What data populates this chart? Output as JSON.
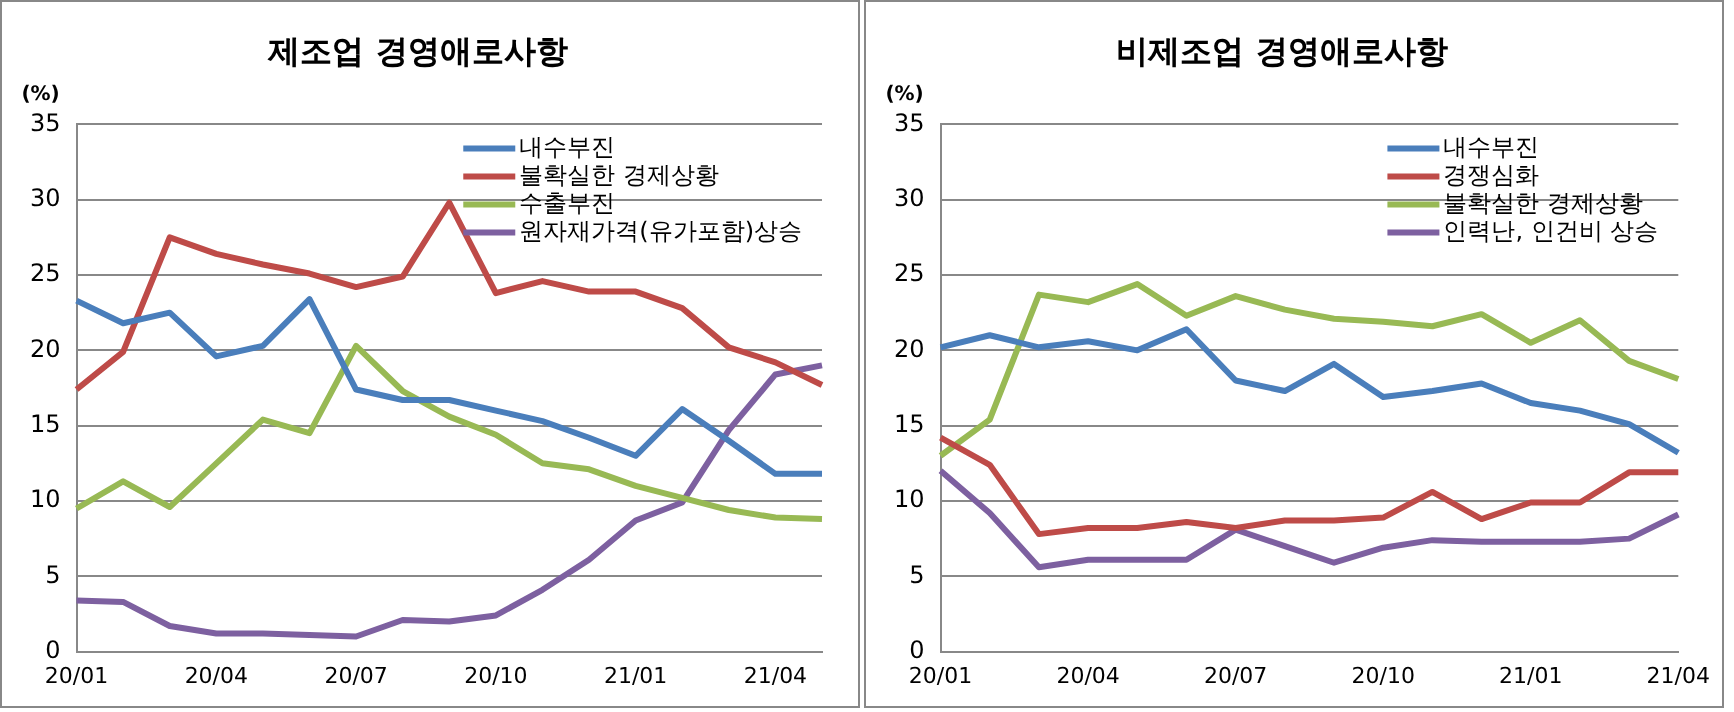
{
  "chart_data": [
    {
      "type": "line",
      "title": "제조업 경영애로사항",
      "ylabel": "(%)",
      "categories": [
        "20/01",
        null,
        null,
        "20/04",
        null,
        null,
        "20/07",
        null,
        null,
        "20/10",
        null,
        null,
        "21/01",
        null,
        null,
        "21/04",
        null
      ],
      "ylim": [
        0,
        35
      ],
      "yticks": [
        0,
        5,
        10,
        15,
        20,
        25,
        30,
        35
      ],
      "grid": "y",
      "legend": "top right",
      "series": [
        {
          "name": "내수부진",
          "color": "#4a7ebb",
          "values": [
            23.3,
            21.8,
            22.5,
            19.6,
            20.3,
            23.4,
            17.4,
            16.7,
            16.7,
            16.0,
            15.3,
            14.2,
            13.0,
            16.1,
            14.0,
            11.8,
            11.8
          ]
        },
        {
          "name": "불확실한 경제상황",
          "color": "#be4b48",
          "values": [
            17.4,
            19.9,
            27.5,
            26.4,
            25.7,
            25.1,
            24.2,
            24.9,
            29.8,
            23.8,
            24.6,
            23.9,
            23.9,
            22.8,
            20.2,
            19.2,
            17.7
          ]
        },
        {
          "name": "수출부진",
          "color": "#98b954",
          "values": [
            9.5,
            11.3,
            9.6,
            12.5,
            15.4,
            14.5,
            20.3,
            17.3,
            15.6,
            14.4,
            12.5,
            12.1,
            11.0,
            10.2,
            9.4,
            8.9,
            8.8
          ]
        },
        {
          "name": "원자재가격(유가포함)상승",
          "color": "#7d60a0",
          "values": [
            3.4,
            3.3,
            1.7,
            1.2,
            1.2,
            1.1,
            1.0,
            2.1,
            2.0,
            2.4,
            4.1,
            6.1,
            8.7,
            9.9,
            14.7,
            18.4,
            19.0
          ]
        }
      ]
    },
    {
      "type": "line",
      "title": "비제조업 경영애로사항",
      "ylabel": "(%)",
      "categories": [
        "20/01",
        null,
        null,
        "20/04",
        null,
        null,
        "20/07",
        null,
        null,
        "20/10",
        null,
        null,
        "21/01",
        null,
        null,
        "21/04"
      ],
      "ylim": [
        0,
        35
      ],
      "yticks": [
        0,
        5,
        10,
        15,
        20,
        25,
        30,
        35
      ],
      "grid": "y",
      "legend": "top right",
      "series": [
        {
          "name": "내수부진",
          "color": "#4a7ebb",
          "values": [
            20.2,
            21.0,
            20.2,
            20.6,
            20.0,
            21.4,
            18.0,
            17.3,
            19.1,
            16.9,
            17.3,
            17.8,
            16.5,
            16.0,
            15.1,
            13.2
          ]
        },
        {
          "name": "경쟁심화",
          "color": "#be4b48",
          "values": [
            14.2,
            12.4,
            7.8,
            8.2,
            8.2,
            8.6,
            8.2,
            8.7,
            8.7,
            8.9,
            10.6,
            8.8,
            9.9,
            9.9,
            11.9,
            11.9
          ]
        },
        {
          "name": "불확실한 경제상황",
          "color": "#98b954",
          "values": [
            13.0,
            15.4,
            23.7,
            23.2,
            24.4,
            22.3,
            23.6,
            22.7,
            22.1,
            21.9,
            21.6,
            22.4,
            20.5,
            22.0,
            19.3,
            18.1
          ]
        },
        {
          "name": "인력난, 인건비 상승",
          "color": "#7d60a0",
          "values": [
            12.0,
            9.2,
            5.6,
            6.1,
            6.1,
            6.1,
            8.1,
            7.0,
            5.9,
            6.9,
            7.4,
            7.3,
            7.3,
            7.3,
            7.5,
            9.1
          ]
        }
      ]
    }
  ]
}
